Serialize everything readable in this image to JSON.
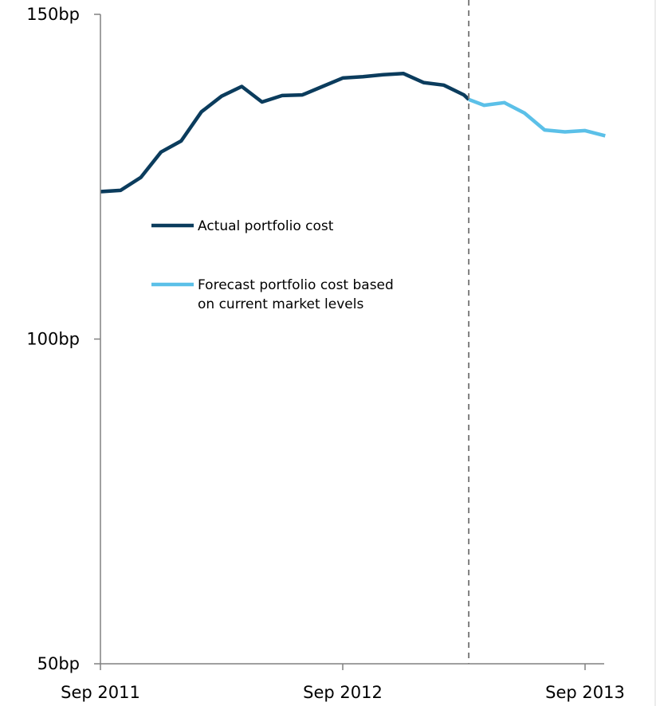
{
  "chart_data": {
    "type": "line",
    "x_ticks": [
      "Sep 2011",
      "Sep 2012",
      "Sep 2013"
    ],
    "y_ticks": [
      "150bp",
      "100bp",
      "50bp"
    ],
    "ylim": [
      50,
      150
    ],
    "xlim": [
      "Sep 2011",
      "Nov 2013"
    ],
    "grid": false,
    "legend_placement": "upper-left",
    "divider_at": "Mar 2013",
    "series": [
      {
        "name": "Actual portfolio cost",
        "color": "#0b3c5d",
        "points": [
          [
            "Sep 2011",
            122.7
          ],
          [
            "Oct 2011",
            122.9
          ],
          [
            "Nov 2011",
            124.9
          ],
          [
            "Dec 2011",
            128.8
          ],
          [
            "Jan 2012",
            130.5
          ],
          [
            "Feb 2012",
            135.0
          ],
          [
            "Mar 2012",
            137.4
          ],
          [
            "Apr 2012",
            138.9
          ],
          [
            "May 2012",
            136.5
          ],
          [
            "Jun 2012",
            137.5
          ],
          [
            "Jul 2012",
            137.6
          ],
          [
            "Aug 2012",
            138.9
          ],
          [
            "Sep 2012",
            140.2
          ],
          [
            "Oct 2012",
            140.4
          ],
          [
            "Nov 2012",
            140.7
          ],
          [
            "Dec 2012",
            140.9
          ],
          [
            "Jan 2013",
            139.5
          ],
          [
            "Feb 2013",
            139.1
          ],
          [
            "Mar 2013",
            137.6
          ],
          [
            "Mar 2013",
            136.9
          ]
        ]
      },
      {
        "name": "Forecast portfolio cost based on current market levels",
        "color": "#5bc0e8",
        "points": [
          [
            "Mar 2013",
            136.9
          ],
          [
            "Apr 2013",
            136.0
          ],
          [
            "May 2013",
            136.4
          ],
          [
            "Jun 2013",
            134.8
          ],
          [
            "Jul 2013",
            132.2
          ],
          [
            "Aug 2013",
            131.9
          ],
          [
            "Sep 2013",
            132.1
          ],
          [
            "Oct 2013",
            131.3
          ]
        ]
      }
    ]
  },
  "legend": [
    {
      "lines": [
        "Actual portfolio cost"
      ],
      "color": "#0b3c5d"
    },
    {
      "lines": [
        "Forecast portfolio cost based",
        "on current market levels"
      ],
      "color": "#5bc0e8"
    }
  ]
}
